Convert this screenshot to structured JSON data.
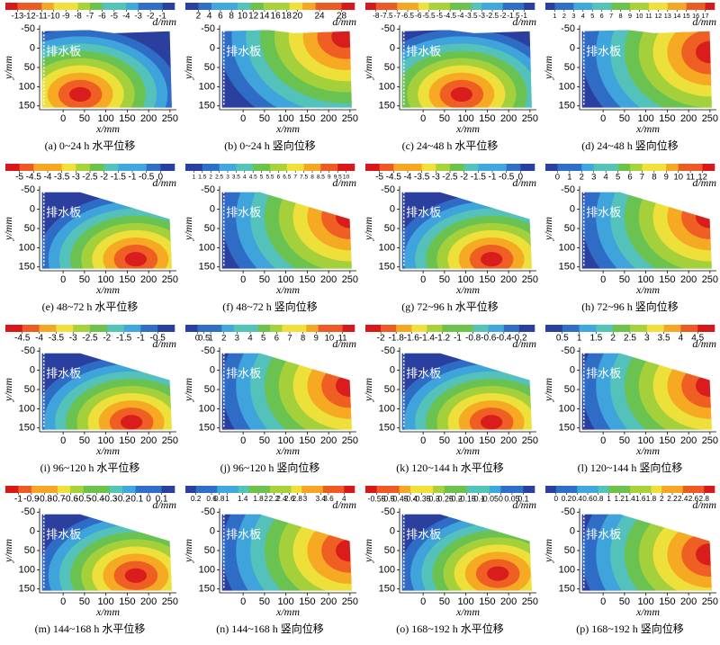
{
  "colormap": [
    "#2a3f9e",
    "#2f6fc8",
    "#3fa8dc",
    "#55c4b8",
    "#6cc24a",
    "#a8d23a",
    "#f2e03a",
    "#f5a623",
    "#ee5a24",
    "#d7191c"
  ],
  "chart_data": [
    {
      "type": "contour",
      "caption": "(a) 0~24 h 水平位移",
      "xlabel": "x/mm",
      "ylabel": "y/mm",
      "colorbar_label": "d/mm",
      "annotation": "排水板",
      "xlim": [
        -55,
        265
      ],
      "ylim": [
        -60,
        160
      ],
      "xticks": [
        0,
        50,
        100,
        150,
        200,
        250
      ],
      "yticks": [
        -50,
        0,
        50,
        100,
        150
      ],
      "colorbar_ticks": [
        -13,
        -12,
        -11,
        -10,
        -9,
        -8,
        -7,
        -6,
        -5,
        -4,
        -3,
        -2,
        -1
      ],
      "reverse": true,
      "peak_x": 40,
      "peak_y": 120
    },
    {
      "type": "contour",
      "caption": "(b) 0~24 h 竖向位移",
      "xlabel": "x/mm",
      "ylabel": "y/mm",
      "colorbar_label": "d/mm",
      "annotation": "排水板",
      "xlim": [
        -55,
        265
      ],
      "ylim": [
        -60,
        160
      ],
      "xticks": [
        0,
        50,
        100,
        150,
        200,
        250
      ],
      "yticks": [
        -50,
        0,
        50,
        100,
        150
      ],
      "colorbar_ticks": [
        2,
        4,
        6,
        8,
        10,
        12,
        14,
        16,
        18,
        20,
        24,
        28
      ],
      "reverse": false,
      "peak_x": 240,
      "peak_y": -30
    },
    {
      "type": "contour",
      "caption": "(c) 24~48 h 水平位移",
      "xlabel": "x/mm",
      "ylabel": "y/mm",
      "colorbar_label": "d/mm",
      "annotation": "排水板",
      "xlim": [
        -55,
        265
      ],
      "ylim": [
        -60,
        160
      ],
      "xticks": [
        0,
        50,
        100,
        150,
        200,
        250
      ],
      "yticks": [
        -50,
        0,
        50,
        100,
        150
      ],
      "colorbar_ticks": [
        -8,
        -7.5,
        -7,
        -6.5,
        -6,
        -5.5,
        -5,
        -4.5,
        -4,
        -3.5,
        -3,
        -2.5,
        -2,
        -1.5,
        -1
      ],
      "reverse": true,
      "peak_x": 90,
      "peak_y": 120
    },
    {
      "type": "contour",
      "caption": "(d) 24~48 h 竖向位移",
      "xlabel": "x/mm",
      "ylabel": "y/mm",
      "colorbar_label": "d/mm",
      "annotation": "排水板",
      "xlim": [
        -55,
        265
      ],
      "ylim": [
        -60,
        160
      ],
      "xticks": [
        0,
        50,
        100,
        150,
        200,
        250
      ],
      "yticks": [
        -50,
        0,
        50,
        100,
        150
      ],
      "colorbar_ticks": [
        1,
        2,
        3,
        4,
        5,
        6,
        7,
        8,
        9,
        10,
        11,
        12,
        13,
        14,
        15,
        16,
        17
      ],
      "reverse": false,
      "peak_x": 250,
      "peak_y": 10
    },
    {
      "type": "contour",
      "caption": "(e) 48~72 h 水平位移",
      "xlabel": "x/mm",
      "ylabel": "y/mm",
      "colorbar_label": "d/mm",
      "annotation": "排水板",
      "xlim": [
        -55,
        265
      ],
      "ylim": [
        -60,
        160
      ],
      "xticks": [
        0,
        50,
        100,
        150,
        200,
        250
      ],
      "yticks": [
        -50,
        0,
        50,
        100,
        150
      ],
      "colorbar_ticks": [
        -5,
        -4.5,
        -4,
        -3.5,
        -3,
        -2.5,
        -2,
        -1.5,
        -1,
        -0.5,
        0
      ],
      "reverse": true,
      "peak_x": 170,
      "peak_y": 130
    },
    {
      "type": "contour",
      "caption": "(f) 48~72 h 竖向位移",
      "xlabel": "x/mm",
      "ylabel": "y/mm",
      "colorbar_label": "d/mm",
      "annotation": "排水板",
      "xlim": [
        -55,
        265
      ],
      "ylim": [
        -60,
        160
      ],
      "xticks": [
        0,
        50,
        100,
        150,
        200,
        250
      ],
      "yticks": [
        -50,
        0,
        50,
        100,
        150
      ],
      "colorbar_ticks": [
        1,
        1.5,
        2,
        2.5,
        3,
        3.5,
        4,
        4.5,
        5,
        5.5,
        6,
        6.5,
        7,
        7.5,
        8,
        8.5,
        9,
        9.5,
        10
      ],
      "reverse": false,
      "peak_x": 250,
      "peak_y": 20
    },
    {
      "type": "contour",
      "caption": "(g) 72~96 h 水平位移",
      "xlabel": "x/mm",
      "ylabel": "y/mm",
      "colorbar_label": "d/mm",
      "annotation": "排水板",
      "xlim": [
        -55,
        265
      ],
      "ylim": [
        -60,
        160
      ],
      "xticks": [
        0,
        50,
        100,
        150,
        200,
        250
      ],
      "yticks": [
        -50,
        0,
        50,
        100,
        150
      ],
      "colorbar_ticks": [
        -5,
        -4.5,
        -4,
        -3.5,
        -3,
        -2.5,
        -2,
        -1.5,
        -1,
        -0.5,
        0
      ],
      "reverse": true,
      "peak_x": 160,
      "peak_y": 130
    },
    {
      "type": "contour",
      "caption": "(h) 72~96 h 竖向位移",
      "xlabel": "x/mm",
      "ylabel": "y/mm",
      "colorbar_label": "d/mm",
      "annotation": "排水板",
      "xlim": [
        -55,
        265
      ],
      "ylim": [
        -60,
        160
      ],
      "xticks": [
        0,
        50,
        100,
        150,
        200,
        250
      ],
      "yticks": [
        -50,
        0,
        50,
        100,
        150
      ],
      "colorbar_ticks": [
        0,
        1,
        2,
        3,
        4,
        5,
        6,
        7,
        8,
        9,
        10,
        11,
        12
      ],
      "reverse": false,
      "peak_x": 250,
      "peak_y": 20
    },
    {
      "type": "contour",
      "caption": "(i) 96~120 h 水平位移",
      "xlabel": "x/mm",
      "ylabel": "y/mm",
      "colorbar_label": "d/mm",
      "annotation": "排水板",
      "xlim": [
        -55,
        265
      ],
      "ylim": [
        -60,
        160
      ],
      "xticks": [
        0,
        50,
        100,
        150,
        200,
        250
      ],
      "yticks": [
        -50,
        0,
        50,
        100,
        150
      ],
      "colorbar_ticks": [
        -4.5,
        -4,
        -3.5,
        -3,
        -2.5,
        -2,
        -1.5,
        -1,
        -0.5
      ],
      "reverse": true,
      "peak_x": 160,
      "peak_y": 135
    },
    {
      "type": "contour",
      "caption": "(j) 96~120 h 竖向位移",
      "xlabel": "x/mm",
      "ylabel": "y/mm",
      "colorbar_label": "d/mm",
      "annotation": "排水板",
      "xlim": [
        -55,
        265
      ],
      "ylim": [
        -60,
        160
      ],
      "xticks": [
        0,
        50,
        100,
        150,
        200,
        250
      ],
      "yticks": [
        -50,
        0,
        50,
        100,
        150
      ],
      "colorbar_ticks": [
        0,
        0.5,
        1,
        2,
        3,
        4,
        5,
        6,
        7,
        8,
        9,
        10,
        11
      ],
      "reverse": false,
      "peak_x": 250,
      "peak_y": 40
    },
    {
      "type": "contour",
      "caption": "(k) 120~144 h 水平位移",
      "xlabel": "x/mm",
      "ylabel": "y/mm",
      "colorbar_label": "d/mm",
      "annotation": "排水板",
      "xlim": [
        -55,
        265
      ],
      "ylim": [
        -60,
        160
      ],
      "xticks": [
        0,
        50,
        100,
        150,
        200,
        250
      ],
      "yticks": [
        -50,
        0,
        50,
        100,
        150
      ],
      "colorbar_ticks": [
        -2,
        -1.8,
        -1.6,
        -1.4,
        -1.2,
        -1,
        -0.8,
        -0.6,
        -0.4,
        -0.2
      ],
      "reverse": true,
      "peak_x": 160,
      "peak_y": 135
    },
    {
      "type": "contour",
      "caption": "(l) 120~144 h 竖向位移",
      "xlabel": "x/mm",
      "ylabel": "y/mm",
      "colorbar_label": "d/mm",
      "annotation": "排水板",
      "xlim": [
        -55,
        265
      ],
      "ylim": [
        -60,
        160
      ],
      "xticks": [
        0,
        50,
        100,
        150,
        200,
        250
      ],
      "yticks": [
        -50,
        0,
        50,
        100,
        150
      ],
      "colorbar_ticks": [
        0.5,
        1,
        1.5,
        2,
        2.5,
        3,
        3.5,
        4,
        4.5
      ],
      "reverse": false,
      "peak_x": 250,
      "peak_y": 40
    },
    {
      "type": "contour",
      "caption": "(m) 144~168 h 水平位移",
      "xlabel": "x/mm",
      "ylabel": "y/mm",
      "colorbar_label": "d/mm",
      "annotation": "排水板",
      "xlim": [
        -55,
        265
      ],
      "ylim": [
        -60,
        160
      ],
      "xticks": [
        0,
        50,
        100,
        150,
        200,
        250
      ],
      "yticks": [
        -50,
        0,
        50,
        100,
        150
      ],
      "colorbar_ticks": [
        -1,
        -0.9,
        -0.8,
        -0.7,
        -0.6,
        -0.5,
        -0.4,
        -0.3,
        -0.2,
        -0.1,
        0,
        0.1
      ],
      "reverse": true,
      "peak_x": 170,
      "peak_y": 115
    },
    {
      "type": "contour",
      "caption": "(n) 144~168 h 竖向位移",
      "xlabel": "x/mm",
      "ylabel": "y/mm",
      "colorbar_label": "d/mm",
      "annotation": "排水板",
      "xlim": [
        -55,
        265
      ],
      "ylim": [
        -60,
        160
      ],
      "xticks": [
        0,
        50,
        100,
        150,
        200,
        250
      ],
      "yticks": [
        -50,
        0,
        50,
        100,
        150
      ],
      "colorbar_ticks": [
        0.2,
        0.6,
        0.8,
        1,
        1.4,
        1.8,
        2,
        2.2,
        2.4,
        2.6,
        2.8,
        3,
        3.4,
        3.6,
        4
      ],
      "reverse": false,
      "peak_x": 250,
      "peak_y": 50
    },
    {
      "type": "contour",
      "caption": "(o) 168~192 h 水平位移",
      "xlabel": "x/mm",
      "ylabel": "y/mm",
      "colorbar_label": "d/mm",
      "annotation": "排水板",
      "xlim": [
        -55,
        265
      ],
      "ylim": [
        -60,
        160
      ],
      "xticks": [
        0,
        50,
        100,
        150,
        200,
        250
      ],
      "yticks": [
        -50,
        0,
        50,
        100,
        150
      ],
      "colorbar_ticks": [
        -0.55,
        -0.5,
        -0.45,
        -0.4,
        -0.35,
        -0.3,
        -0.25,
        -0.2,
        -0.15,
        -0.1,
        -0.05,
        0,
        0.05,
        0.1
      ],
      "reverse": true,
      "peak_x": 175,
      "peak_y": 110
    },
    {
      "type": "contour",
      "caption": "(p) 168~192 h 竖向位移",
      "xlabel": "x/mm",
      "ylabel": "y/mm",
      "colorbar_label": "d/mm",
      "annotation": "排水板",
      "xlim": [
        -55,
        265
      ],
      "ylim": [
        -60,
        160
      ],
      "xticks": [
        0,
        50,
        100,
        150,
        200,
        250
      ],
      "yticks": [
        -50,
        0,
        50,
        100,
        150
      ],
      "colorbar_ticks": [
        0,
        0.2,
        0.4,
        0.6,
        0.8,
        1,
        1.2,
        1.4,
        1.6,
        1.8,
        2,
        2.2,
        2.4,
        2.6,
        2.8
      ],
      "reverse": false,
      "peak_x": 250,
      "peak_y": 60
    }
  ]
}
